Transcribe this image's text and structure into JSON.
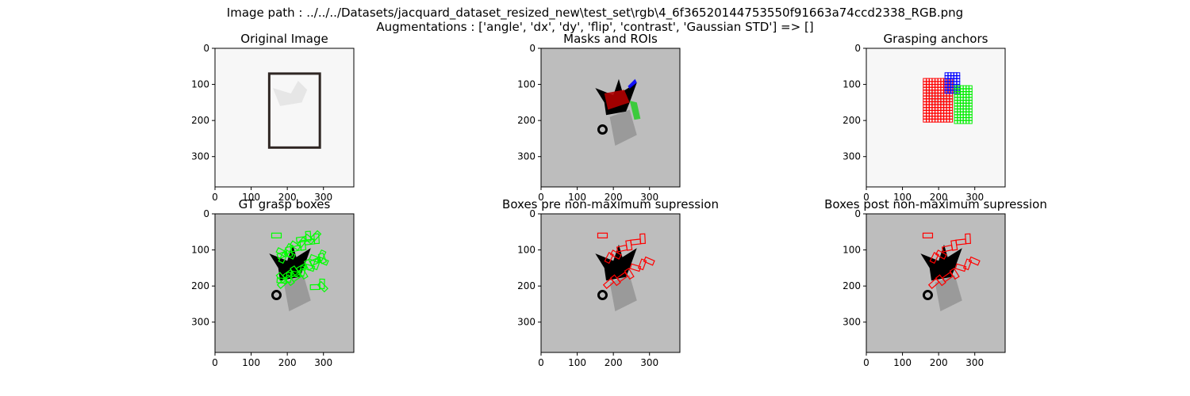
{
  "figure": {
    "suptitle_line1": "Image path : ../../../Datasets/jacquard_dataset_resized_new\\test_set\\rgb\\4_6f36520144753550f91663a74ccd2338_RGB.png",
    "suptitle_line2": "Augmentations : ['angle', 'dx', 'dy', 'flip', 'contrast', 'Gaussian STD'] => []"
  },
  "chart_data": [
    {
      "type": "image",
      "title": "Original Image",
      "xticks": [
        0,
        100,
        200,
        300
      ],
      "yticks": [
        0,
        100,
        200,
        300
      ],
      "xlim": [
        0,
        384
      ],
      "ylim": [
        384,
        0
      ],
      "background": "#f7f7f7",
      "overlays": [
        {
          "kind": "rect",
          "x0": 150,
          "y0": 70,
          "x1": 290,
          "y1": 275,
          "color": "#2f2623",
          "label": "object box"
        }
      ]
    },
    {
      "type": "image",
      "title": "Masks and ROIs",
      "xticks": [
        0,
        100,
        200,
        300
      ],
      "yticks": [
        0,
        100,
        200,
        300
      ],
      "xlim": [
        0,
        384
      ],
      "ylim": [
        384,
        0
      ],
      "background": "#bdbdbd",
      "overlays": [
        {
          "kind": "mask",
          "color": "#b00000",
          "label": "red mask"
        },
        {
          "kind": "mask",
          "color": "#0000ff",
          "label": "blue mask"
        },
        {
          "kind": "mask",
          "color": "#2ecc2e",
          "label": "green mask"
        }
      ]
    },
    {
      "type": "image",
      "title": "Grasping anchors",
      "xticks": [
        0,
        100,
        200,
        300
      ],
      "yticks": [
        0,
        100,
        200,
        300
      ],
      "xlim": [
        0,
        384
      ],
      "ylim": [
        384,
        0
      ],
      "background": "#f7f7f7",
      "overlays": [
        {
          "kind": "anchors",
          "x0": 162,
          "y0": 88,
          "x1": 240,
          "y1": 205,
          "color": "#ff0000"
        },
        {
          "kind": "anchors",
          "x0": 222,
          "y0": 72,
          "x1": 260,
          "y1": 122,
          "color": "#0000ff"
        },
        {
          "kind": "anchors",
          "x0": 248,
          "y0": 108,
          "x1": 295,
          "y1": 205,
          "color": "#00ee00"
        }
      ]
    },
    {
      "type": "image",
      "title": "GT grasp boxes",
      "xticks": [
        0,
        100,
        200,
        300
      ],
      "yticks": [
        0,
        100,
        200,
        300
      ],
      "xlim": [
        0,
        384
      ],
      "ylim": [
        384,
        0
      ],
      "background": "#bdbdbd",
      "overlays": [
        {
          "kind": "grasp_boxes",
          "color": "#00ff00",
          "secondary": "#000000"
        }
      ]
    },
    {
      "type": "image",
      "title": "Boxes pre non-maximum supression",
      "xticks": [
        0,
        100,
        200,
        300
      ],
      "yticks": [
        0,
        100,
        200,
        300
      ],
      "xlim": [
        0,
        384
      ],
      "ylim": [
        384,
        0
      ],
      "background": "#bdbdbd",
      "overlays": [
        {
          "kind": "grasp_boxes",
          "color": "#ff0000"
        }
      ]
    },
    {
      "type": "image",
      "title": "Boxes post non-maximum supression",
      "xticks": [
        0,
        100,
        200,
        300
      ],
      "yticks": [
        0,
        100,
        200,
        300
      ],
      "xlim": [
        0,
        384
      ],
      "ylim": [
        384,
        0
      ],
      "background": "#bdbdbd",
      "overlays": [
        {
          "kind": "grasp_boxes",
          "color": "#ff0000"
        }
      ]
    }
  ]
}
